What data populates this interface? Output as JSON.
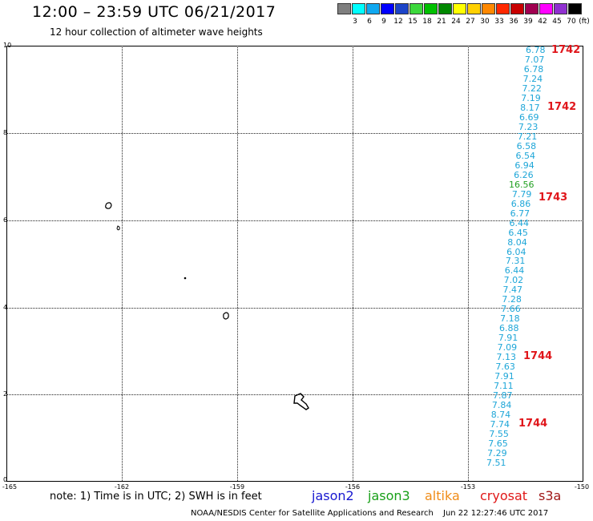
{
  "title": "12:00 – 23:59 UTC 06/21/2017",
  "subtitle": "12 hour collection of altimeter wave heights",
  "legend": {
    "colors": [
      "#7f7f7f",
      "#00ffff",
      "#10a8f0",
      "#0000ff",
      "#1c44c8",
      "#3cd83c",
      "#00c000",
      "#008800",
      "#ffff00",
      "#ffd000",
      "#ff8800",
      "#ff2800",
      "#c80000",
      "#a00050",
      "#ff00ff",
      "#9030d0",
      "#000000"
    ],
    "labels": [
      "3",
      "6",
      "9",
      "12",
      "15",
      "18",
      "21",
      "24",
      "27",
      "30",
      "33",
      "36",
      "39",
      "42",
      "45",
      "70"
    ],
    "unit": "(ft)"
  },
  "axes": {
    "y_ticks": [
      "10",
      "8",
      "6",
      "4",
      "2",
      "0"
    ],
    "x_ticks": [
      "-165",
      "-162",
      "-159",
      "-156",
      "-153",
      "-150"
    ]
  },
  "wave_heights": [
    {
      "text": "6.78",
      "color": "cyan"
    },
    {
      "text": "7.07",
      "color": "cyan"
    },
    {
      "text": "6.78",
      "color": "cyan"
    },
    {
      "text": "7.24",
      "color": "cyan"
    },
    {
      "text": "7.22",
      "color": "cyan"
    },
    {
      "text": "7.19",
      "color": "cyan"
    },
    {
      "text": "8.17",
      "color": "cyan"
    },
    {
      "text": "6.69",
      "color": "cyan"
    },
    {
      "text": "7.23",
      "color": "cyan"
    },
    {
      "text": "7.21",
      "color": "cyan"
    },
    {
      "text": "6.58",
      "color": "cyan"
    },
    {
      "text": "6.54",
      "color": "cyan"
    },
    {
      "text": "6.94",
      "color": "cyan"
    },
    {
      "text": "6.26",
      "color": "cyan"
    },
    {
      "text": "16.56",
      "color": "green"
    },
    {
      "text": "7.79",
      "color": "cyan"
    },
    {
      "text": "6.86",
      "color": "cyan"
    },
    {
      "text": "6.77",
      "color": "cyan"
    },
    {
      "text": "6.44",
      "color": "cyan"
    },
    {
      "text": "6.45",
      "color": "cyan"
    },
    {
      "text": "8.04",
      "color": "cyan"
    },
    {
      "text": "6.04",
      "color": "cyan"
    },
    {
      "text": "7.31",
      "color": "cyan"
    },
    {
      "text": "6.44",
      "color": "cyan"
    },
    {
      "text": "7.02",
      "color": "cyan"
    },
    {
      "text": "7.47",
      "color": "cyan"
    },
    {
      "text": "7.28",
      "color": "cyan"
    },
    {
      "text": "7.66",
      "color": "cyan"
    },
    {
      "text": "7.18",
      "color": "cyan"
    },
    {
      "text": "6.88",
      "color": "cyan"
    },
    {
      "text": "7.91",
      "color": "cyan"
    },
    {
      "text": "7.09",
      "color": "cyan"
    },
    {
      "text": "7.13",
      "color": "cyan"
    },
    {
      "text": "7.63",
      "color": "cyan"
    },
    {
      "text": "7.91",
      "color": "cyan"
    },
    {
      "text": "7.11",
      "color": "cyan"
    },
    {
      "text": "7.87",
      "color": "cyan"
    },
    {
      "text": "7.84",
      "color": "cyan"
    },
    {
      "text": "8.74",
      "color": "cyan"
    },
    {
      "text": "7.74",
      "color": "cyan"
    },
    {
      "text": "7.55",
      "color": "cyan"
    },
    {
      "text": "7.65",
      "color": "cyan"
    },
    {
      "text": "7.29",
      "color": "cyan"
    },
    {
      "text": "7.51",
      "color": "cyan"
    }
  ],
  "pass_times": [
    "1742",
    "1742",
    "1743",
    "1744",
    "1744"
  ],
  "note": "note: 1) Time is in UTC; 2) SWH is in feet",
  "satellites": [
    {
      "name": "jason2",
      "color": "#1818d0"
    },
    {
      "name": "jason3",
      "color": "#18a018"
    },
    {
      "name": "altika",
      "color": "#f08c18"
    },
    {
      "name": "cryosat",
      "color": "#e01818"
    },
    {
      "name": "s3a",
      "color": "#a01818"
    }
  ],
  "credit": "NOAA/NESDIS Center for Satellite Applications and Research",
  "timestamp": "Jun 22 12:27:46 UTC 2017",
  "colors": {
    "cyan": "#1ea6d8",
    "green": "#22a022",
    "pass": "#e0161b"
  }
}
